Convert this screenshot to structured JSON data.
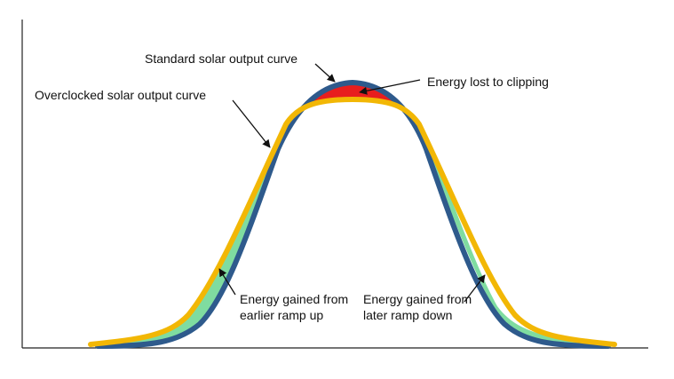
{
  "labels": {
    "standard": "Standard solar output curve",
    "overclocked": "Overclocked solar output curve",
    "clipping": "Energy lost to clipping",
    "ramp_up": "Energy gained from\nearlier ramp up",
    "ramp_down": "Energy gained from\nlater ramp down"
  },
  "colors": {
    "standard_curve": "#2E5A8C",
    "overclocked_curve": "#F2B705",
    "gain_fill": "#7FDCA0",
    "clipping_fill": "#E81E1E",
    "axis": "#222222",
    "arrow": "#111111"
  }
}
